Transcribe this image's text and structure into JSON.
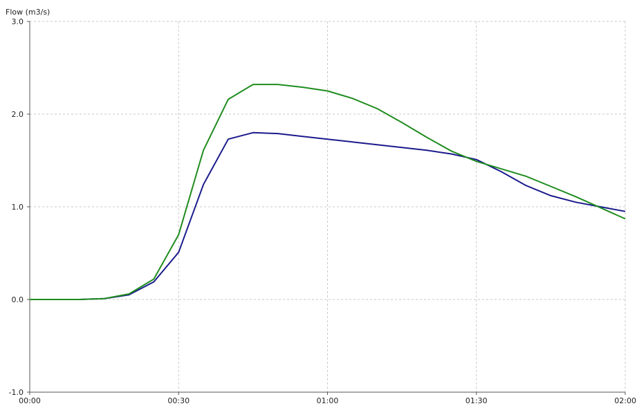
{
  "chart_data": {
    "type": "line",
    "title": "",
    "xlabel": "",
    "ylabel": "Flow (m3/s)",
    "x": [
      "00:00",
      "00:05",
      "00:10",
      "00:15",
      "00:20",
      "00:25",
      "00:30",
      "00:35",
      "00:40",
      "00:45",
      "00:50",
      "00:55",
      "01:00",
      "01:05",
      "01:10",
      "01:15",
      "01:20",
      "01:25",
      "01:30",
      "01:35",
      "01:40",
      "01:45",
      "01:50",
      "01:55",
      "02:00"
    ],
    "x_tick_labels": [
      "00:00",
      "00:30",
      "01:00",
      "01:30",
      "02:00"
    ],
    "y_tick_labels": [
      "3.0",
      "2.0",
      "1.0",
      "0.0",
      "-1.0"
    ],
    "ylim": [
      -1.0,
      3.0
    ],
    "grid": true,
    "legend": "none",
    "series": [
      {
        "color": "#1a1a8c",
        "values": [
          0.0,
          0.0,
          0.0,
          0.01,
          0.05,
          0.19,
          0.51,
          1.24,
          1.73,
          1.8,
          1.79,
          1.76,
          1.73,
          1.7,
          1.67,
          1.64,
          1.61,
          1.57,
          1.51,
          1.38,
          1.23,
          1.12,
          1.05,
          1.0,
          0.95
        ]
      },
      {
        "color": "#1f8c1f",
        "values": [
          0.0,
          0.0,
          0.0,
          0.01,
          0.06,
          0.22,
          0.7,
          1.61,
          2.16,
          2.32,
          2.32,
          2.29,
          2.25,
          2.17,
          2.06,
          1.91,
          1.75,
          1.6,
          1.49,
          1.41,
          1.33,
          1.22,
          1.11,
          0.99,
          0.87
        ]
      }
    ]
  }
}
